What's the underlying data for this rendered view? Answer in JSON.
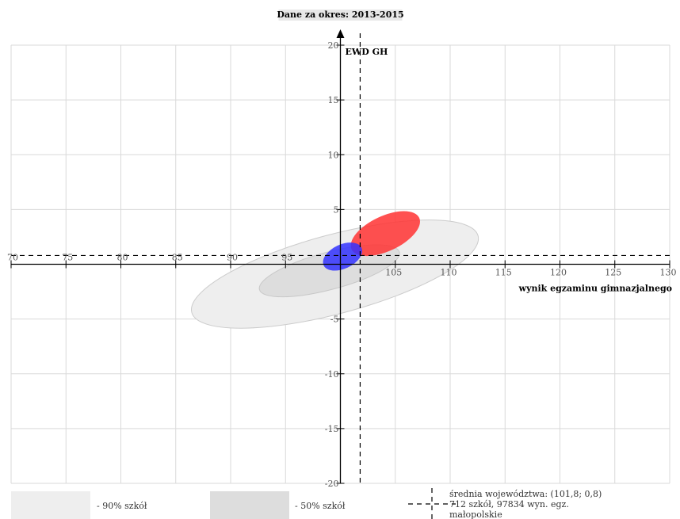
{
  "chart_data": {
    "type": "scatter",
    "title": "Dane za okres: 2013-2015",
    "xlabel": "wynik egzaminu gimnazjalnego",
    "ylabel": "EWD GH",
    "xlim": [
      70,
      130
    ],
    "ylim": [
      -20,
      20
    ],
    "x_ticks": [
      70,
      75,
      80,
      85,
      90,
      95,
      105,
      110,
      115,
      120,
      125,
      130
    ],
    "y_ticks": [
      -20,
      -15,
      -10,
      -5,
      5,
      10,
      15,
      20
    ],
    "grid": true,
    "mean": {
      "x": 101.8,
      "y": 0.8
    },
    "ellipses": [
      {
        "name": "90% szkół",
        "cx": 99.5,
        "cy": -0.9,
        "rx": 13.5,
        "ry": 3.6,
        "angle_deg": 15,
        "color": "#eeeeee",
        "stroke": "#cccccc"
      },
      {
        "name": "50% szkół",
        "cx": 99.0,
        "cy": -0.6,
        "rx": 6.6,
        "ry": 1.7,
        "angle_deg": 15,
        "color": "#dddddd",
        "stroke": "#c8c8c8"
      },
      {
        "cx": 104.1,
        "cy": 2.8,
        "rx": 3.4,
        "ry": 1.6,
        "angle_deg": 25,
        "color": "#ff3333",
        "opacity": 0.85
      },
      {
        "cx": 100.2,
        "cy": 0.7,
        "rx": 1.9,
        "ry": 1.1,
        "angle_deg": 25,
        "color": "#3333ff",
        "opacity": 0.85
      }
    ]
  },
  "legend": {
    "item_90": "- 90% szkół",
    "item_50": "- 50% szkół",
    "mean_line": "średnia województwa: (101,8; 0,8)",
    "count_line": "712 szkół, 97834 wyn. egz.",
    "region_line": "małopolskie",
    "swatch_90_color": "#eeeeee",
    "swatch_50_color": "#dddddd"
  }
}
